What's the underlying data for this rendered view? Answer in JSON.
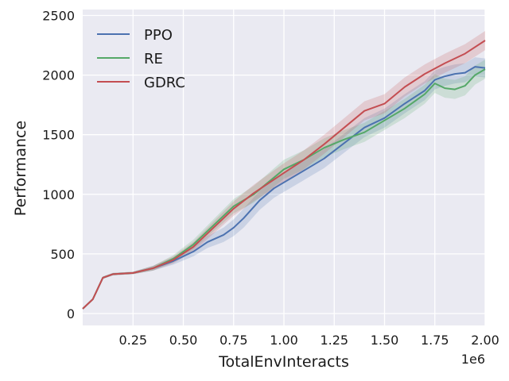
{
  "chart_data": {
    "type": "line",
    "xlabel": "TotalEnvInteracts",
    "ylabel": "Performance",
    "x_offset_label": "1e6",
    "xlim": [
      0,
      2.0
    ],
    "ylim": [
      -100,
      2550
    ],
    "x_ticks": [
      0.25,
      0.5,
      0.75,
      1.0,
      1.25,
      1.5,
      1.75,
      2.0
    ],
    "x_tick_labels": [
      "0.25",
      "0.50",
      "0.75",
      "1.00",
      "1.25",
      "1.50",
      "1.75",
      "2.00"
    ],
    "y_ticks": [
      0,
      500,
      1000,
      1500,
      2000,
      2500
    ],
    "y_tick_labels": [
      "0",
      "500",
      "1000",
      "1500",
      "2000",
      "2500"
    ],
    "grid": true,
    "legend_position": "top-left",
    "colors": {
      "background": "#eaeaf2",
      "grid": "#ffffff",
      "PPO": "#4c72b0",
      "RE": "#55a868",
      "GDRC": "#c44e52"
    },
    "series": [
      {
        "name": "PPO",
        "x": [
          0,
          0.05,
          0.1,
          0.15,
          0.25,
          0.35,
          0.45,
          0.55,
          0.62,
          0.7,
          0.75,
          0.8,
          0.88,
          0.95,
          1.0,
          1.1,
          1.2,
          1.3,
          1.4,
          1.5,
          1.6,
          1.7,
          1.75,
          1.8,
          1.85,
          1.9,
          1.95,
          2.0
        ],
        "y": [
          40,
          120,
          300,
          330,
          340,
          380,
          440,
          520,
          600,
          660,
          720,
          800,
          950,
          1050,
          1100,
          1200,
          1300,
          1430,
          1560,
          1640,
          1760,
          1870,
          1960,
          1990,
          2010,
          2020,
          2070,
          2060
        ],
        "band": [
          0,
          0,
          10,
          10,
          10,
          20,
          30,
          40,
          50,
          60,
          70,
          80,
          80,
          80,
          80,
          80,
          80,
          80,
          80,
          80,
          80,
          80,
          80,
          80,
          80,
          80,
          80,
          80
        ]
      },
      {
        "name": "RE",
        "x": [
          0,
          0.05,
          0.1,
          0.15,
          0.25,
          0.35,
          0.45,
          0.55,
          0.65,
          0.75,
          0.85,
          1.0,
          1.1,
          1.2,
          1.3,
          1.4,
          1.5,
          1.6,
          1.7,
          1.75,
          1.8,
          1.85,
          1.9,
          1.95,
          2.0
        ],
        "y": [
          40,
          120,
          300,
          330,
          340,
          380,
          460,
          580,
          740,
          900,
          1000,
          1210,
          1290,
          1390,
          1460,
          1520,
          1620,
          1720,
          1840,
          1930,
          1890,
          1880,
          1910,
          2000,
          2050
        ],
        "band": [
          0,
          0,
          10,
          10,
          10,
          20,
          30,
          40,
          50,
          60,
          70,
          80,
          80,
          80,
          80,
          80,
          80,
          80,
          80,
          80,
          80,
          80,
          80,
          80,
          80
        ]
      },
      {
        "name": "GDRC",
        "x": [
          0,
          0.05,
          0.1,
          0.15,
          0.25,
          0.35,
          0.45,
          0.55,
          0.65,
          0.75,
          0.85,
          1.0,
          1.1,
          1.2,
          1.3,
          1.4,
          1.5,
          1.6,
          1.7,
          1.8,
          1.9,
          2.0
        ],
        "y": [
          40,
          120,
          300,
          330,
          340,
          380,
          450,
          560,
          720,
          880,
          1010,
          1180,
          1290,
          1420,
          1560,
          1700,
          1760,
          1900,
          2010,
          2100,
          2180,
          2290
        ],
        "band": [
          0,
          0,
          10,
          10,
          10,
          20,
          30,
          40,
          50,
          60,
          70,
          80,
          80,
          80,
          80,
          80,
          80,
          80,
          80,
          80,
          80,
          80
        ]
      }
    ]
  }
}
